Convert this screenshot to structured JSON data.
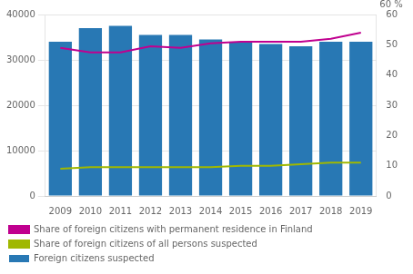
{
  "chart_data": {
    "type": "bar",
    "categories": [
      "2009",
      "2010",
      "2011",
      "2012",
      "2013",
      "2014",
      "2015",
      "2016",
      "2017",
      "2018",
      "2019"
    ],
    "series": [
      {
        "name": "Share of foreign citizens with permanent residence in Finland",
        "type": "line",
        "axis": "y2",
        "color": "#C0008F",
        "values": [
          49,
          47.5,
          47.5,
          49.5,
          49,
          50.5,
          51,
          51,
          51,
          52,
          54
        ]
      },
      {
        "name": "Share of foreign citizens of all persons suspected",
        "type": "line",
        "axis": "y2",
        "color": "#A0B800",
        "values": [
          9,
          9.5,
          9.5,
          9.5,
          9.5,
          9.5,
          10,
          10,
          10.5,
          11,
          11
        ]
      },
      {
        "name": "Foreign citizens suspected",
        "type": "bar",
        "color": "#2878B4",
        "values": [
          34000,
          37000,
          37500,
          35500,
          35500,
          34500,
          34000,
          33500,
          33000,
          34000,
          34000
        ]
      }
    ],
    "ylim": [
      0,
      40000
    ],
    "yticks": [
      0,
      10000,
      20000,
      30000,
      40000
    ],
    "y2lim": [
      0,
      60
    ],
    "y2ticks": [
      0,
      10,
      20,
      30,
      40,
      50,
      60
    ],
    "grid": true,
    "legend": "lower left",
    "annotations": [
      "60 %"
    ]
  }
}
